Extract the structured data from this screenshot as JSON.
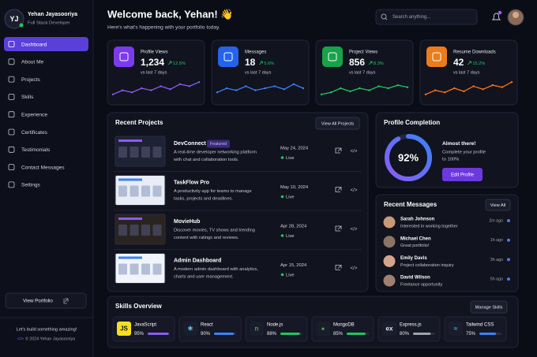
{
  "sidebar": {
    "initials": "YJ",
    "name": "Yehan Jayasooriya",
    "role": "Full Stack Developer",
    "nav": [
      "Dashboard",
      "About Me",
      "Projects",
      "Skills",
      "Experience",
      "Certificates",
      "Testimonials",
      "Contact Messages",
      "Settings"
    ],
    "view_portfolio": "View Portfolio",
    "tagline": "Let's build something amazing!",
    "copyright": "© 2024 Yehan Jayasooriya"
  },
  "header": {
    "title": "Welcome back, Yehan! 👋",
    "subtitle": "Here's what's happening with your portfolio today.",
    "search_placeholder": "Search anything..."
  },
  "stats": [
    {
      "label": "Profile Views",
      "value": "1,234",
      "change": "12.5%",
      "period": "vs last 7 days",
      "color": "#7c3aed",
      "line_color": "#8b5cf6",
      "trend": [
        2,
        4,
        3,
        5,
        4,
        6,
        4.5,
        7,
        6,
        8
      ]
    },
    {
      "label": "Messages",
      "value": "18",
      "change": "5.6%",
      "period": "vs last 7 days",
      "color": "#2563eb",
      "line_color": "#3b82f6",
      "trend": [
        3,
        5,
        4,
        6,
        4,
        5,
        6,
        4.5,
        7,
        5
      ]
    },
    {
      "label": "Project Views",
      "value": "856",
      "change": "8.3%",
      "period": "vs last 7 days",
      "color": "#16a34a",
      "line_color": "#22c55e",
      "trend": [
        2,
        3,
        5,
        3.5,
        5,
        4,
        6,
        5,
        6.5,
        5.5
      ]
    },
    {
      "label": "Resume Downloads",
      "value": "42",
      "change": "15.2%",
      "period": "vs last 7 days",
      "color": "#ea7c1a",
      "line_color": "#f97316",
      "trend": [
        2,
        4,
        3,
        5,
        3.5,
        6,
        4.5,
        6.5,
        5.5,
        8
      ]
    }
  ],
  "recent_projects": {
    "title": "Recent Projects",
    "action": "View All Projects",
    "items": [
      {
        "name": "DevConnect",
        "badge": "Featured",
        "description_lines": [
          "A real-time developer networking platform",
          "with chat and collaboration tools."
        ],
        "date": "May 24, 2024",
        "status": "Live"
      },
      {
        "name": "TaskFlow Pro",
        "description_lines": [
          "A productivity app for teams to manage",
          "tasks, projects and deadlines."
        ],
        "date": "May 10, 2024",
        "status": "Live"
      },
      {
        "name": "MovieHub",
        "description_lines": [
          "Discover movies, TV shows and trending",
          "content with ratings and reviews."
        ],
        "date": "Apr 28, 2024",
        "status": "Live"
      },
      {
        "name": "Admin Dashboard",
        "description_lines": [
          "A modern admin dashboard with analytics,",
          "charts and user management."
        ],
        "date": "Apr 15, 2024",
        "status": "Live"
      }
    ]
  },
  "profile_completion": {
    "title": "Profile Completion",
    "percent": 92,
    "percent_label": "92%",
    "heading": "Almost there!",
    "text_lines": [
      "Complete your profile",
      "to 100%"
    ],
    "button": "Edit Profile"
  },
  "recent_messages": {
    "title": "Recent Messages",
    "action": "View All",
    "items": [
      {
        "name": "Sarah Johnson",
        "text": "Interested in working together",
        "time": "2m ago"
      },
      {
        "name": "Michael Chen",
        "text": "Great portfolio!",
        "time": "1h ago"
      },
      {
        "name": "Emily Davis",
        "text": "Project collaboration inquiry",
        "time": "3h ago"
      },
      {
        "name": "David Wilson",
        "text": "Freelance opportunity",
        "time": "5h ago"
      }
    ]
  },
  "skills": {
    "title": "Skills Overview",
    "action": "Manage Skills",
    "items": [
      {
        "name": "JavaScript",
        "value": 95,
        "value_label": "95%",
        "color": "#8b5cf6",
        "icon": "JS",
        "icon_bg": "#f7df1e",
        "icon_fg": "#111111"
      },
      {
        "name": "React",
        "value": 90,
        "value_label": "90%",
        "color": "#3b82f6",
        "icon": "⚛",
        "icon_bg": "#1a1d2c",
        "icon_fg": "#61dafb"
      },
      {
        "name": "Node.js",
        "value": 88,
        "value_label": "88%",
        "color": "#22c55e",
        "icon": "n",
        "icon_bg": "#1a1d2c",
        "icon_fg": "#5fa04e"
      },
      {
        "name": "MongoDB",
        "value": 85,
        "value_label": "85%",
        "color": "#22c55e",
        "icon": "●",
        "icon_bg": "#1a1d2c",
        "icon_fg": "#47a248"
      },
      {
        "name": "Express.js",
        "value": 80,
        "value_label": "80%",
        "color": "#9ca3af",
        "icon": "ex",
        "icon_bg": "#1a1d2c",
        "icon_fg": "#e5e7eb"
      },
      {
        "name": "Tailwind CSS",
        "value": 75,
        "value_label": "75%",
        "color": "#3b82f6",
        "icon": "≈",
        "icon_bg": "#1a1d2c",
        "icon_fg": "#38bdf8"
      }
    ]
  }
}
